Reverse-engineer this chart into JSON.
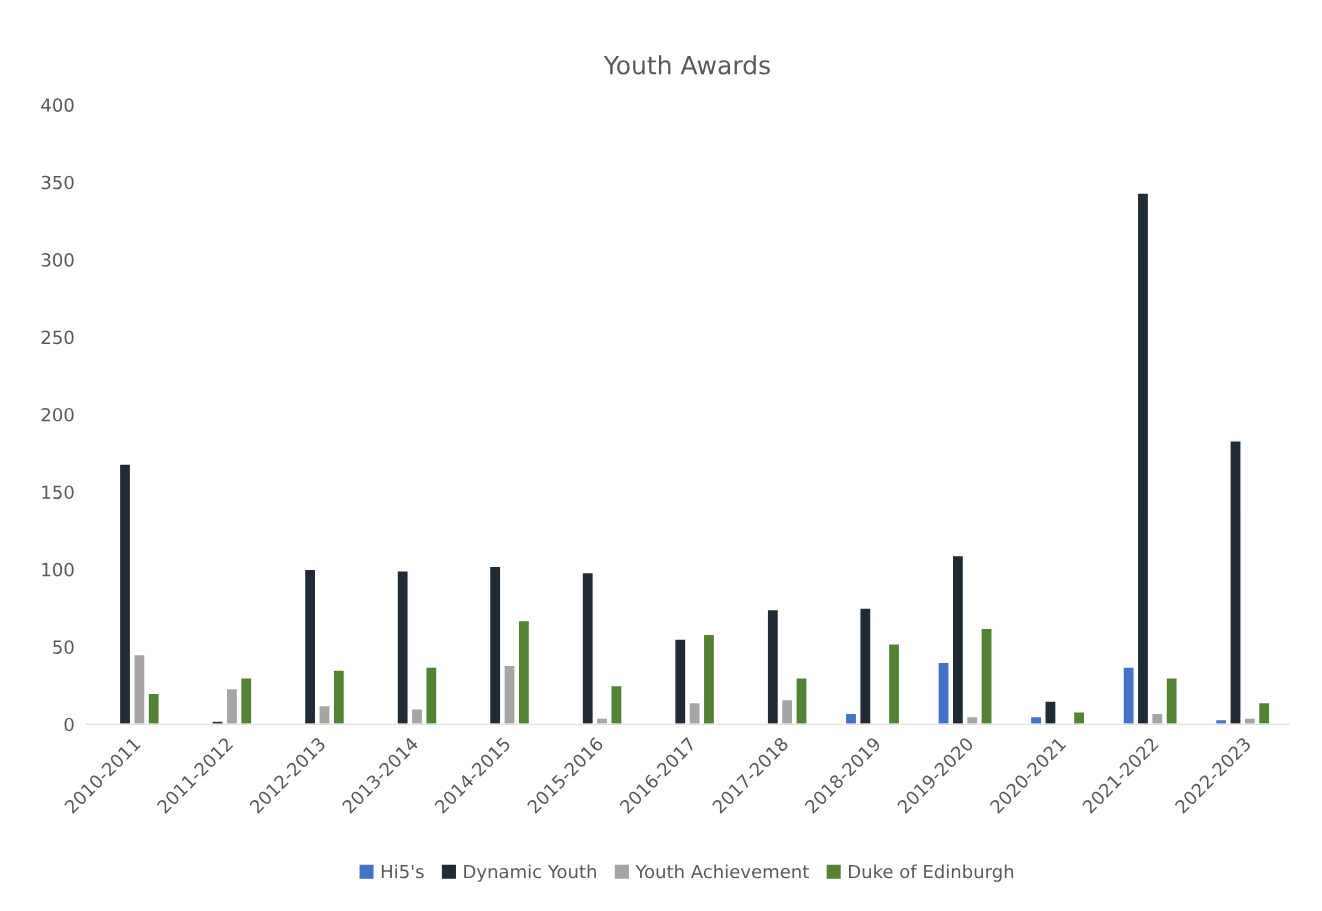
{
  "chart_data": {
    "type": "bar",
    "title": "Youth Awards",
    "categories": [
      "2010-2011",
      "2011-2012",
      "2012-2013",
      "2013-2014",
      "2014-2015",
      "2015-2016",
      "2016-2017",
      "2017-2018",
      "2018-2019",
      "2019-2020",
      "2020-2021",
      "2021-2022",
      "2022-2023"
    ],
    "series": [
      {
        "name": "Hi5's",
        "color": "#4472c4",
        "values": [
          null,
          null,
          null,
          null,
          null,
          null,
          null,
          null,
          7,
          40,
          5,
          37,
          3
        ]
      },
      {
        "name": "Dynamic Youth",
        "color": "#222a35",
        "values": [
          168,
          2,
          100,
          99,
          102,
          98,
          55,
          74,
          75,
          109,
          15,
          343,
          183
        ]
      },
      {
        "name": "Youth Achievement",
        "color": "#a5a5a5",
        "values": [
          45,
          23,
          12,
          10,
          38,
          4,
          14,
          16,
          null,
          5,
          null,
          7,
          4
        ]
      },
      {
        "name": "Duke of Edinburgh",
        "color": "#548235",
        "values": [
          20,
          30,
          35,
          37,
          67,
          25,
          58,
          30,
          52,
          62,
          8,
          30,
          14
        ]
      }
    ],
    "ylim": [
      0,
      400
    ],
    "yticks": [
      0,
      50,
      100,
      150,
      200,
      250,
      300,
      350,
      400
    ],
    "grid": false,
    "legend": "bottom"
  }
}
